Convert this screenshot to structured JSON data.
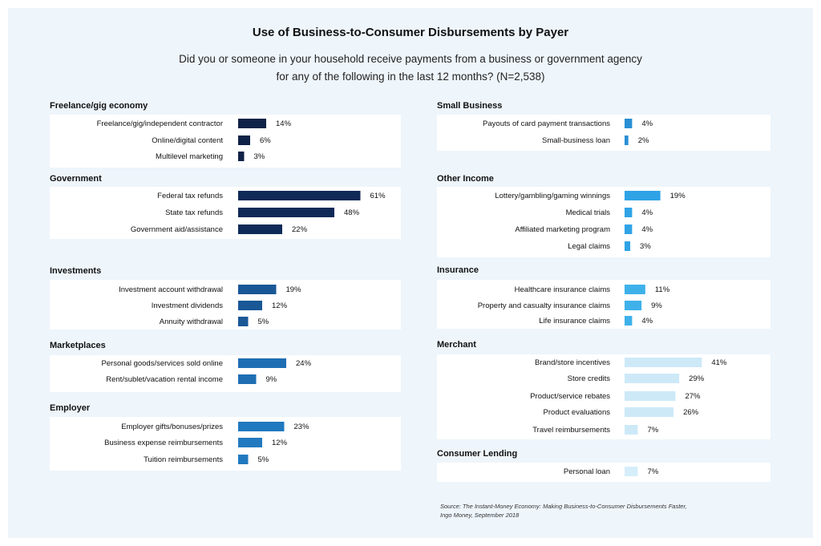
{
  "title": "Use of Business-to-Consumer Disbursements by Payer",
  "subtitle_line1": "Did you or someone in your household receive payments from a business or government agency",
  "subtitle_line2": "for any of the following in the last 12 months? (N=2,538)",
  "source_line1": "Source: The Instant-Money Economy: Making Business-to-Consumer Disbursements Faster,",
  "source_line2": "Ingo Money, September 2018",
  "chart_data": {
    "type": "bar",
    "orientation": "horizontal",
    "unit": "%",
    "title": "Use of Business-to-Consumer Disbursements by Payer",
    "groups": [
      {
        "name": "Freelance/gig economy",
        "color": "#0f2247",
        "categories": [
          "Freelance/gig/independent contractor",
          "Online/digital content",
          "Multilevel marketing"
        ],
        "values": [
          14,
          6,
          3
        ]
      },
      {
        "name": "Government",
        "color": "#0f2a57",
        "categories": [
          "Federal tax refunds",
          "State tax refunds",
          "Government aid/assistance"
        ],
        "values": [
          61,
          48,
          22
        ]
      },
      {
        "name": "Investments",
        "color": "#1a5796",
        "categories": [
          "Investment account withdrawal",
          "Investment dividends",
          "Annuity withdrawal"
        ],
        "values": [
          19,
          12,
          5
        ]
      },
      {
        "name": "Marketplaces",
        "color": "#1f6eb3",
        "categories": [
          "Personal goods/services sold online",
          "Rent/sublet/vacation rental income"
        ],
        "values": [
          24,
          9
        ]
      },
      {
        "name": "Employer",
        "color": "#2179bf",
        "categories": [
          "Employer gifts/bonuses/prizes",
          "Business expense reimbursements",
          "Tuition reimbursements"
        ],
        "values": [
          23,
          12,
          5
        ]
      },
      {
        "name": "Small Business",
        "color": "#2a8fd4",
        "categories": [
          "Payouts of card payment transactions",
          "Small-business loan"
        ],
        "values": [
          4,
          2
        ]
      },
      {
        "name": "Other Income",
        "color": "#2fa3e6",
        "categories": [
          "Lottery/gambling/gaming winnings",
          "Medical trials",
          "Affiliated marketing program",
          "Legal claims"
        ],
        "values": [
          19,
          4,
          4,
          3
        ]
      },
      {
        "name": "Insurance",
        "color": "#3eb1ea",
        "categories": [
          "Healthcare insurance claims",
          "Property and casualty insurance claims",
          "Life insurance claims"
        ],
        "values": [
          11,
          9,
          4
        ]
      },
      {
        "name": "Merchant",
        "color": "#cde9f8",
        "categories": [
          "Brand/store incentives",
          "Store credits",
          "Product/service rebates",
          "Product evaluations",
          "Travel reimbursements"
        ],
        "values": [
          41,
          29,
          27,
          26,
          7
        ]
      },
      {
        "name": "Consumer Lending",
        "color": "#d6eefa",
        "categories": [
          "Personal loan"
        ],
        "values": [
          7
        ]
      }
    ]
  }
}
